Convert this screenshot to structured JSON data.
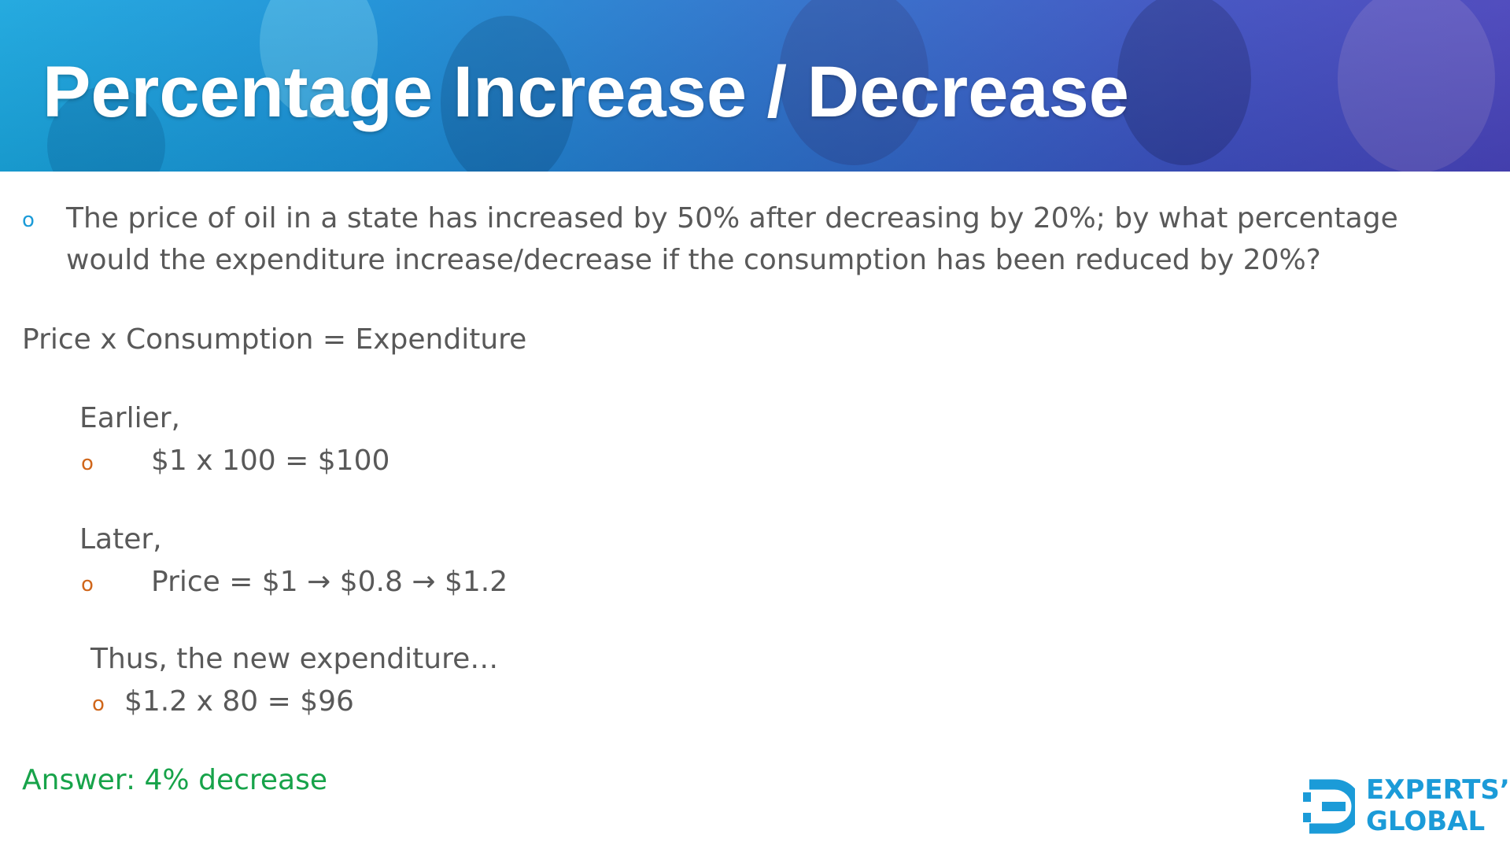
{
  "header": {
    "title": "Percentage Increase / Decrease"
  },
  "question": {
    "bullet": "o",
    "line1": "The price of oil in a state has increased by 50% after decreasing by 20%; by what percentage",
    "line2": "would the expenditure increase/decrease if the consumption has been reduced by 20%?"
  },
  "formula": "Price x Consumption = Expenditure",
  "earlier": {
    "label": "Earlier,",
    "bullet": "o",
    "item": "$1 x 100 = $100"
  },
  "later": {
    "label": "Later,",
    "bullet": "o",
    "item": "Price = $1 → $0.8 → $1.2"
  },
  "thus": {
    "label": "Thus, the new expenditure…",
    "bullet": "o",
    "item": "$1.2 x 80 = $96"
  },
  "answer": "Answer: 4% decrease",
  "logo": {
    "line1": "EXPERTS’",
    "line2": "GLOBAL"
  },
  "colors": {
    "banner_start": "#1aa6de",
    "banner_end": "#4944bb",
    "body_text": "#595959",
    "blue_bullet": "#1b9bd8",
    "orange_bullet": "#d0661a",
    "answer_green": "#17a34a",
    "logo_blue": "#1b9bd8"
  }
}
